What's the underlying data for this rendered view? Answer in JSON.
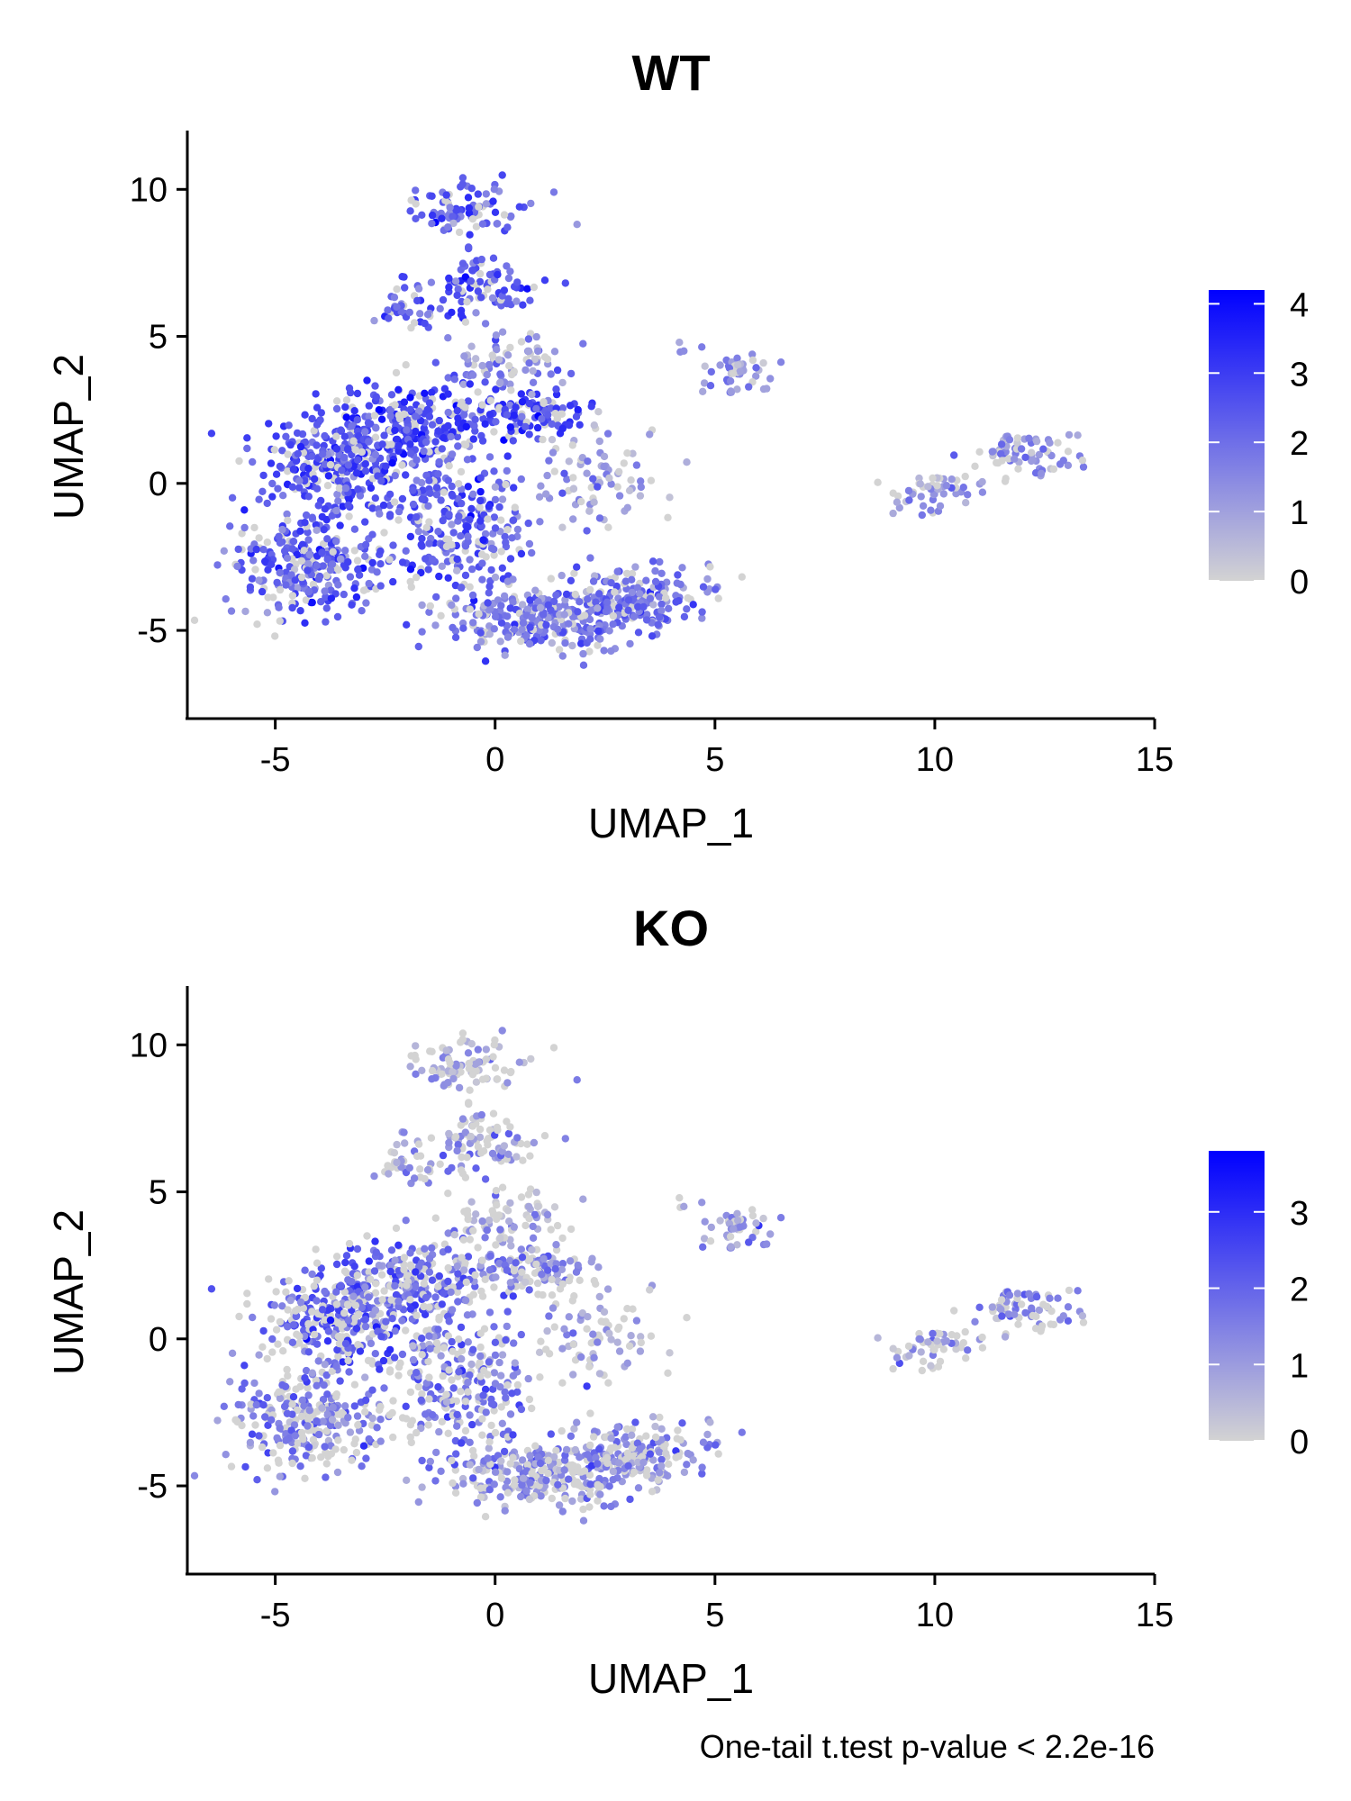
{
  "chart_data": [
    {
      "type": "scatter",
      "title": "WT",
      "xlabel": "UMAP_1",
      "ylabel": "UMAP_2",
      "xlim": [
        -7,
        15
      ],
      "ylim": [
        -8,
        12
      ],
      "xticks": [
        -5,
        0,
        5,
        10,
        15
      ],
      "yticks": [
        -5,
        0,
        5,
        10
      ],
      "x_tick_labels": [
        "-5",
        "0",
        "5",
        "10",
        "15"
      ],
      "y_tick_labels": [
        "-5",
        "0",
        "5",
        "10"
      ],
      "colorbar": {
        "min": 0,
        "max": 4.2,
        "ticks": [
          0,
          1,
          2,
          3,
          4
        ],
        "tick_labels": [
          "0",
          "1",
          "2",
          "3",
          "4"
        ],
        "low_color": "#d3d3d3",
        "high_color": "#0000ff"
      },
      "expression_level": "high",
      "grid": false
    },
    {
      "type": "scatter",
      "title": "KO",
      "xlabel": "UMAP_1",
      "ylabel": "UMAP_2",
      "xlim": [
        -7,
        15
      ],
      "ylim": [
        -8,
        12
      ],
      "xticks": [
        -5,
        0,
        5,
        10,
        15
      ],
      "yticks": [
        -5,
        0,
        5,
        10
      ],
      "x_tick_labels": [
        "-5",
        "0",
        "5",
        "10",
        "15"
      ],
      "y_tick_labels": [
        "-5",
        "0",
        "5",
        "10"
      ],
      "colorbar": {
        "min": 0,
        "max": 3.8,
        "ticks": [
          0,
          1,
          2,
          3
        ],
        "tick_labels": [
          "0",
          "1",
          "2",
          "3"
        ],
        "low_color": "#d3d3d3",
        "high_color": "#0000ff"
      },
      "expression_level": "lower",
      "grid": false
    }
  ],
  "footnote": "One-tail t.test p-value < 2.2e-16"
}
